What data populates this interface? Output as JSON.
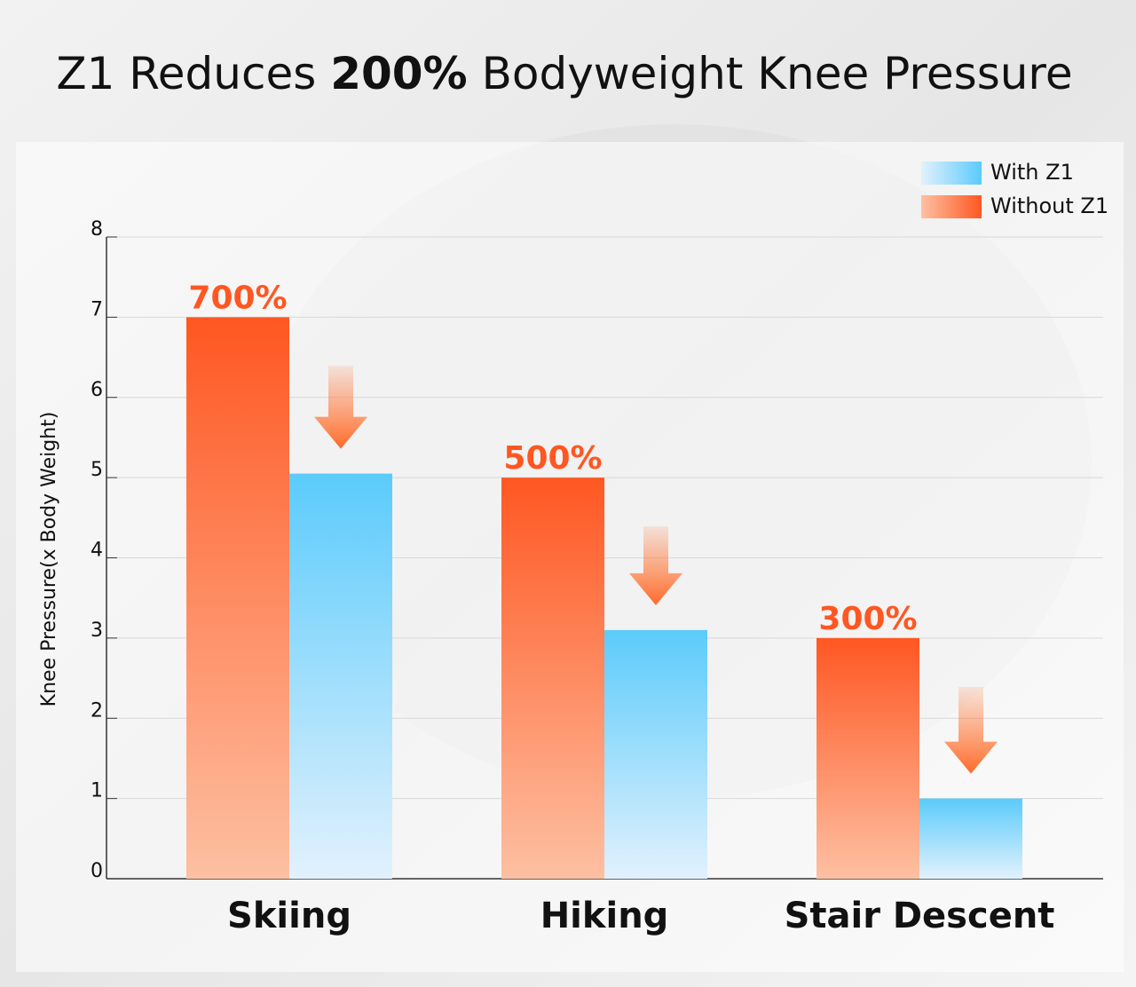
{
  "chart_data": {
    "type": "bar",
    "title": {
      "before": "Z1 Reduces",
      "emphasis": "200%",
      "after": "Bodyweight Knee Pressure"
    },
    "y_label": "Knee Pressure(x Body Weight)",
    "categories": [
      "Skiing",
      "Hiking",
      "Stair Descent"
    ],
    "series": [
      {
        "name": "Without Z1",
        "color": "#ff5722",
        "values": [
          7,
          5,
          3
        ],
        "value_labels": [
          "700%",
          "500%",
          "300%"
        ]
      },
      {
        "name": "With Z1",
        "color": "#5bcbfb",
        "values": [
          5.05,
          3.1,
          1
        ]
      }
    ],
    "ylim": [
      0,
      8
    ],
    "yticks": [
      0,
      1,
      2,
      3,
      4,
      5,
      6,
      7,
      8
    ],
    "grid": true,
    "legend": "top-right"
  }
}
